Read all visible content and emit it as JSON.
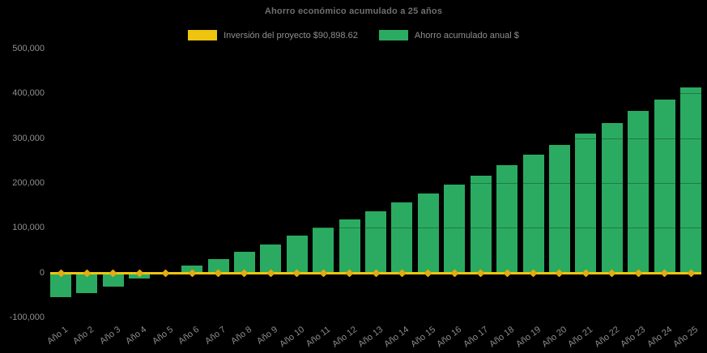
{
  "chart": {
    "title": "Ahorro económico acumulado a 25 años",
    "legend": [
      {
        "label": "Inversión del proyecto $90,898.62",
        "color": "#EFC411",
        "marker": "line"
      },
      {
        "label": "Ahorro acumulado anual $",
        "color": "#2BAB61",
        "marker": "bar"
      }
    ],
    "background": "#000000"
  },
  "chart_data": {
    "type": "bar",
    "title": "Ahorro económico acumulado a 25 años",
    "categories": [
      "Año 1",
      "Año 2",
      "Año 3",
      "Año 4",
      "Año 5",
      "Año 6",
      "Año 7",
      "Año 8",
      "Año 9",
      "Año 10",
      "Año 11",
      "Año 12",
      "Año 13",
      "Año 14",
      "Año 15",
      "Año 16",
      "Año 17",
      "Año 18",
      "Año 19",
      "Año 20",
      "Año 21",
      "Año 22",
      "Año 23",
      "Año 24",
      "Año 25"
    ],
    "series": [
      {
        "name": "Ahorro acumulado anual $",
        "type": "bar",
        "color": "#2BAB61",
        "values": [
          -55000,
          -46000,
          -31000,
          -13000,
          1000,
          15000,
          31000,
          47000,
          62000,
          82000,
          100000,
          118000,
          136000,
          156000,
          176000,
          196000,
          217000,
          239000,
          264000,
          285000,
          310000,
          333000,
          360000,
          387000,
          414000
        ]
      },
      {
        "name": "Inversión del proyecto $90,898.62",
        "type": "line",
        "color": "#EFC411",
        "marker_color": "#E4AC10",
        "investment_amount_label": "$90,898.62",
        "constant_value": -2000,
        "values": [
          -2000,
          -2000,
          -2000,
          -2000,
          -2000,
          -2000,
          -2000,
          -2000,
          -2000,
          -2000,
          -2000,
          -2000,
          -2000,
          -2000,
          -2000,
          -2000,
          -2000,
          -2000,
          -2000,
          -2000,
          -2000,
          -2000,
          -2000,
          -2000,
          -2000
        ]
      }
    ],
    "xlabel": "",
    "ylabel": "",
    "ylim": [
      -100000,
      500000
    ],
    "yticks": [
      {
        "value": 500000,
        "label": "500,000"
      },
      {
        "value": 400000,
        "label": "400,000"
      },
      {
        "value": 300000,
        "label": "300,000"
      },
      {
        "value": 200000,
        "label": "200,000"
      },
      {
        "value": 100000,
        "label": "100,000"
      },
      {
        "value": 0,
        "label": "0"
      },
      {
        "value": -100000,
        "label": "-100,000"
      }
    ],
    "grid": "horizontal, very faint (visible only where crossing bars)",
    "legend_position": "top-center",
    "background": "#000000"
  }
}
